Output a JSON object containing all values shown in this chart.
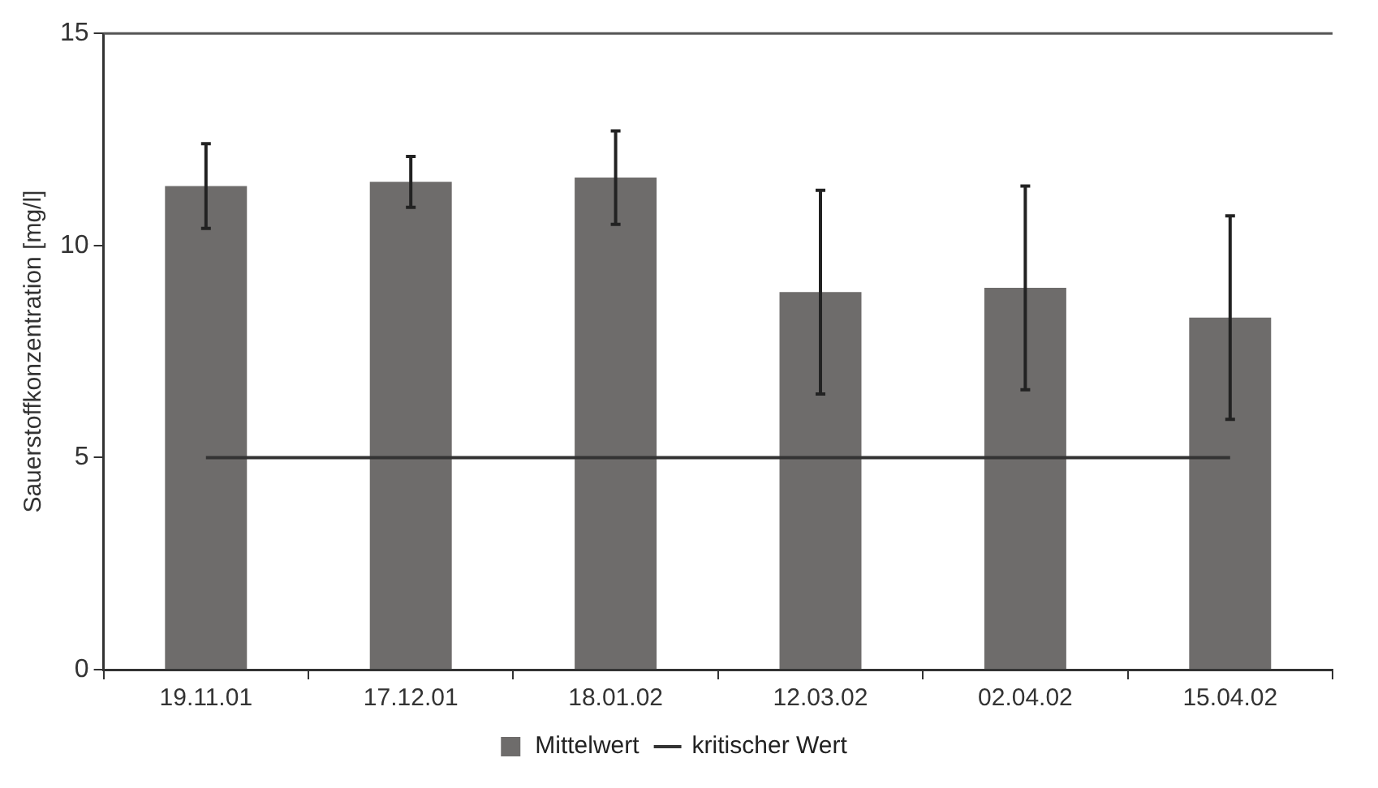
{
  "chart_data": {
    "type": "bar",
    "ylabel": "Sauerstoffkonzentration [mg/l]",
    "categories": [
      "19.11.01",
      "17.12.01",
      "18.01.02",
      "12.03.02",
      "02.04.02",
      "15.04.02"
    ],
    "series": [
      {
        "name": "Mittelwert",
        "color": "#6e6c6b",
        "values": [
          11.4,
          11.5,
          11.6,
          8.9,
          9.0,
          8.3
        ],
        "errors": [
          1.0,
          0.6,
          1.1,
          2.4,
          2.4,
          2.4
        ]
      },
      {
        "name": "kritischer Wert",
        "type": "line",
        "color": "#333333",
        "values": [
          5,
          5,
          5,
          5,
          5,
          5
        ]
      }
    ],
    "ylim": [
      0,
      15
    ],
    "yticks": [
      0,
      5,
      10,
      15
    ],
    "grid": false,
    "legend": "bottom",
    "marker": "none",
    "line_style": "solid"
  }
}
